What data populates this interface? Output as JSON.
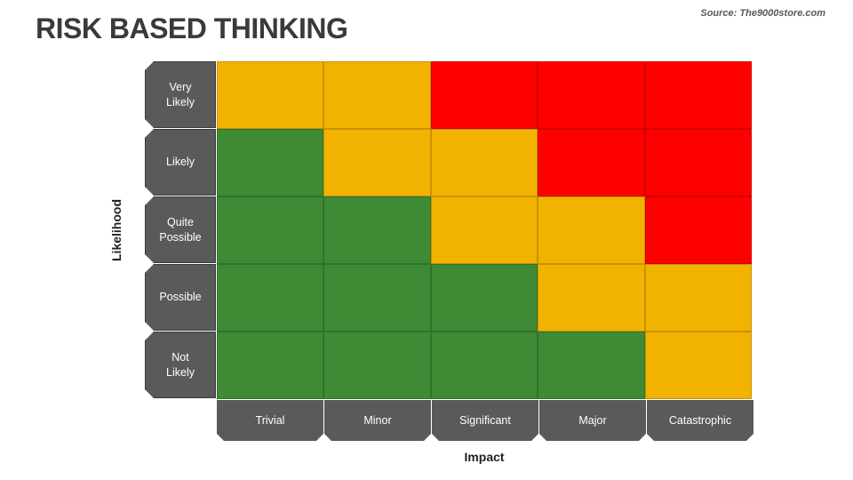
{
  "title": "RISK BASED THINKING",
  "source": "Source: The9000store.com",
  "y_axis_label": "Likelihood",
  "x_axis_label": "Impact",
  "likelihood_levels": [
    "Very\nLikely",
    "Likely",
    "Quite\nPossible",
    "Possible",
    "Not\nLikely"
  ],
  "impact_levels": [
    "Trivial",
    "Minor",
    "Significant",
    "Major",
    "Catastrophic"
  ],
  "colors": {
    "green": "#3f8a35",
    "amber": "#f2b200",
    "red": "#ff0000",
    "label_bg": "#5a5a5a"
  },
  "matrix": [
    [
      "amber",
      "amber",
      "red",
      "red",
      "red"
    ],
    [
      "green",
      "amber",
      "amber",
      "red",
      "red"
    ],
    [
      "green",
      "green",
      "amber",
      "amber",
      "red"
    ],
    [
      "green",
      "green",
      "green",
      "amber",
      "amber"
    ],
    [
      "green",
      "green",
      "green",
      "green",
      "amber"
    ]
  ]
}
